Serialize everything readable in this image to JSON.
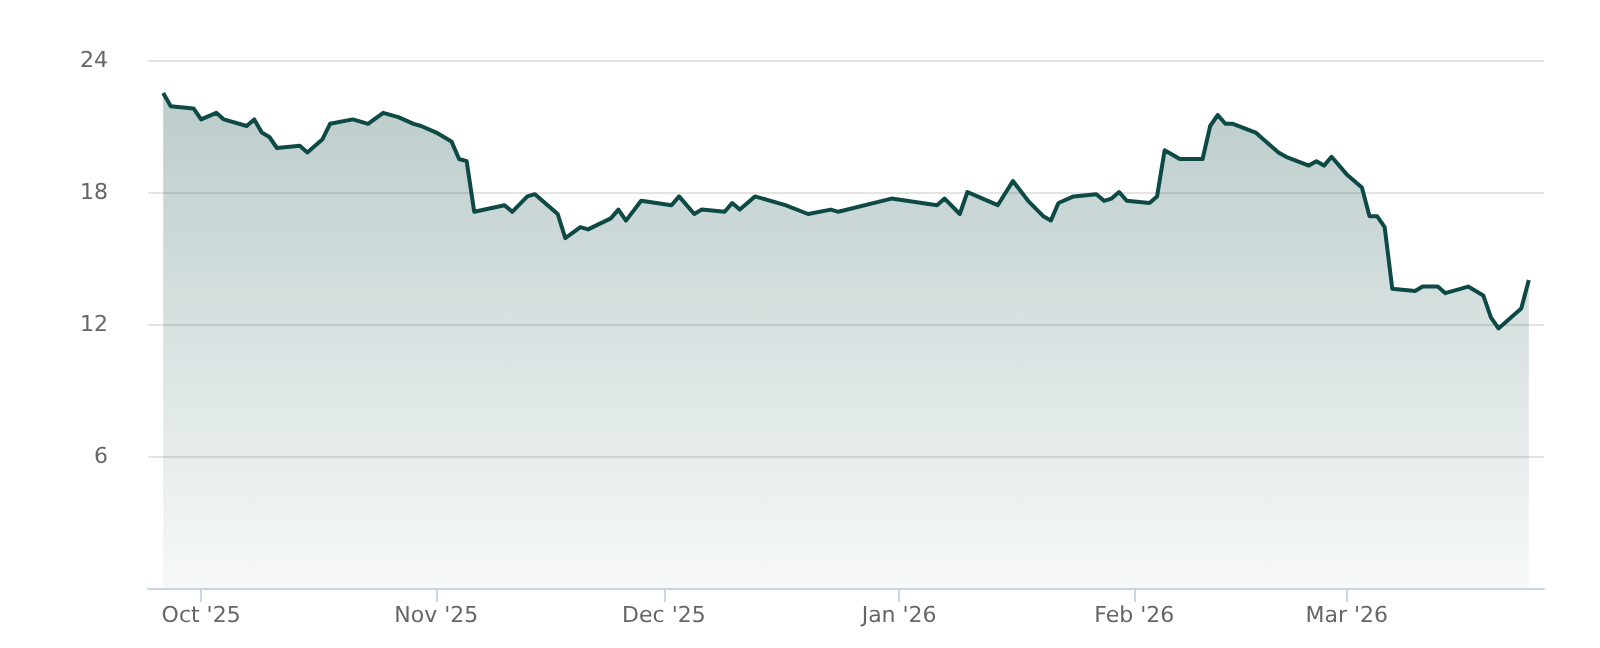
{
  "chart_data": {
    "type": "area",
    "x": [
      "2025-09-26",
      "2025-09-27",
      "2025-09-30",
      "2025-10-01",
      "2025-10-03",
      "2025-10-04",
      "2025-10-07",
      "2025-10-08",
      "2025-10-09",
      "2025-10-10",
      "2025-10-11",
      "2025-10-14",
      "2025-10-15",
      "2025-10-17",
      "2025-10-18",
      "2025-10-21",
      "2025-10-23",
      "2025-10-25",
      "2025-10-27",
      "2025-10-29",
      "2025-10-30",
      "2025-11-01",
      "2025-11-03",
      "2025-11-04",
      "2025-11-05",
      "2025-11-06",
      "2025-11-10",
      "2025-11-11",
      "2025-11-13",
      "2025-11-14",
      "2025-11-17",
      "2025-11-18",
      "2025-11-20",
      "2025-11-21",
      "2025-11-24",
      "2025-11-25",
      "2025-11-26",
      "2025-11-28",
      "2025-12-02",
      "2025-12-03",
      "2025-12-05",
      "2025-12-06",
      "2025-12-09",
      "2025-12-10",
      "2025-12-11",
      "2025-12-13",
      "2025-12-17",
      "2025-12-20",
      "2025-12-23",
      "2025-12-24",
      "2025-12-31",
      "2026-01-06",
      "2026-01-07",
      "2026-01-09",
      "2026-01-10",
      "2026-01-12",
      "2026-01-14",
      "2026-01-16",
      "2026-01-18",
      "2026-01-20",
      "2026-01-21",
      "2026-01-22",
      "2026-01-24",
      "2026-01-27",
      "2026-01-28",
      "2026-01-29",
      "2026-01-30",
      "2026-01-31",
      "2026-02-03",
      "2026-02-04",
      "2026-02-05",
      "2026-02-07",
      "2026-02-10",
      "2026-02-11",
      "2026-02-12",
      "2026-02-13",
      "2026-02-14",
      "2026-02-17",
      "2026-02-18",
      "2026-02-20",
      "2026-02-21",
      "2026-02-24",
      "2026-02-25",
      "2026-02-26",
      "2026-02-27",
      "2026-03-01",
      "2026-03-03",
      "2026-03-04",
      "2026-03-05",
      "2026-03-06",
      "2026-03-07",
      "2026-03-10",
      "2026-03-11",
      "2026-03-13",
      "2026-03-14",
      "2026-03-17",
      "2026-03-19",
      "2026-03-20",
      "2026-03-21",
      "2026-03-24",
      "2026-03-25"
    ],
    "series": [
      {
        "color": "#0e4a45",
        "values": [
          22.5,
          21.9,
          21.8,
          21.3,
          21.6,
          21.3,
          21.0,
          21.3,
          20.7,
          20.5,
          20.0,
          20.1,
          19.8,
          20.4,
          21.1,
          21.3,
          21.1,
          21.6,
          21.4,
          21.1,
          21.0,
          20.7,
          20.3,
          19.5,
          19.4,
          17.1,
          17.4,
          17.1,
          17.8,
          17.9,
          17.0,
          15.9,
          16.4,
          16.3,
          16.8,
          17.2,
          16.7,
          17.6,
          17.4,
          17.8,
          17.0,
          17.2,
          17.1,
          17.5,
          17.2,
          17.8,
          17.4,
          17.0,
          17.2,
          17.1,
          17.7,
          17.4,
          17.7,
          17.0,
          18.0,
          17.7,
          17.4,
          18.5,
          17.6,
          16.9,
          16.7,
          17.5,
          17.8,
          17.9,
          17.6,
          17.7,
          18.0,
          17.6,
          17.5,
          17.8,
          19.9,
          19.5,
          19.5,
          21.0,
          21.5,
          21.1,
          21.1,
          20.7,
          20.4,
          19.8,
          19.6,
          19.2,
          19.4,
          19.2,
          19.6,
          18.8,
          18.2,
          16.9,
          16.9,
          16.4,
          13.6,
          13.5,
          13.7,
          13.7,
          13.4,
          13.7,
          13.3,
          12.3,
          11.8,
          12.7,
          14.0
        ]
      }
    ],
    "xlim": [
      "2025-09-24",
      "2026-03-27"
    ],
    "xticks": [
      {
        "value": "2025-10-01",
        "label": "Oct '25"
      },
      {
        "value": "2025-11-01",
        "label": "Nov '25"
      },
      {
        "value": "2025-12-01",
        "label": "Dec '25"
      },
      {
        "value": "2026-01-01",
        "label": "Jan '26"
      },
      {
        "value": "2026-02-01",
        "label": "Feb '26"
      },
      {
        "value": "2026-03-01",
        "label": "Mar '26"
      }
    ],
    "ylim": [
      0,
      24
    ],
    "yticks": [
      {
        "value": 0,
        "label": null
      },
      6,
      12,
      18,
      24
    ],
    "grid": "y",
    "marker": "none"
  }
}
